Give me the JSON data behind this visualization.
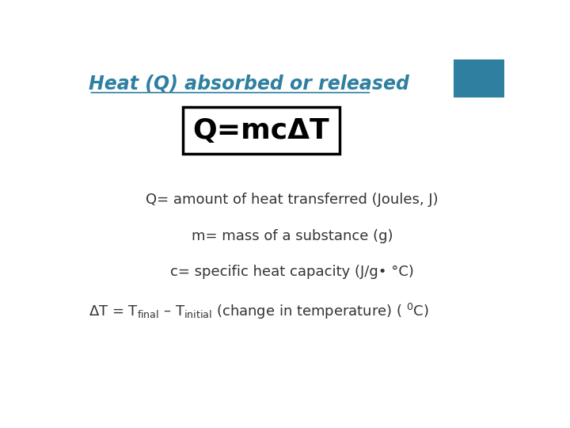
{
  "title": "Heat (Q) absorbed or released",
  "title_color": "#2E7FA0",
  "formula": "Q=mcΔT",
  "formula_fontsize": 26,
  "bg_color": "white",
  "square_color": "#2E7FA0",
  "lines": [
    "Q= amount of heat transferred (Joules, J)",
    "m= mass of a substance (g)",
    "c= specific heat capacity (J/g• °C)"
  ],
  "lines_fontsize": 13,
  "text_color": "#333333"
}
